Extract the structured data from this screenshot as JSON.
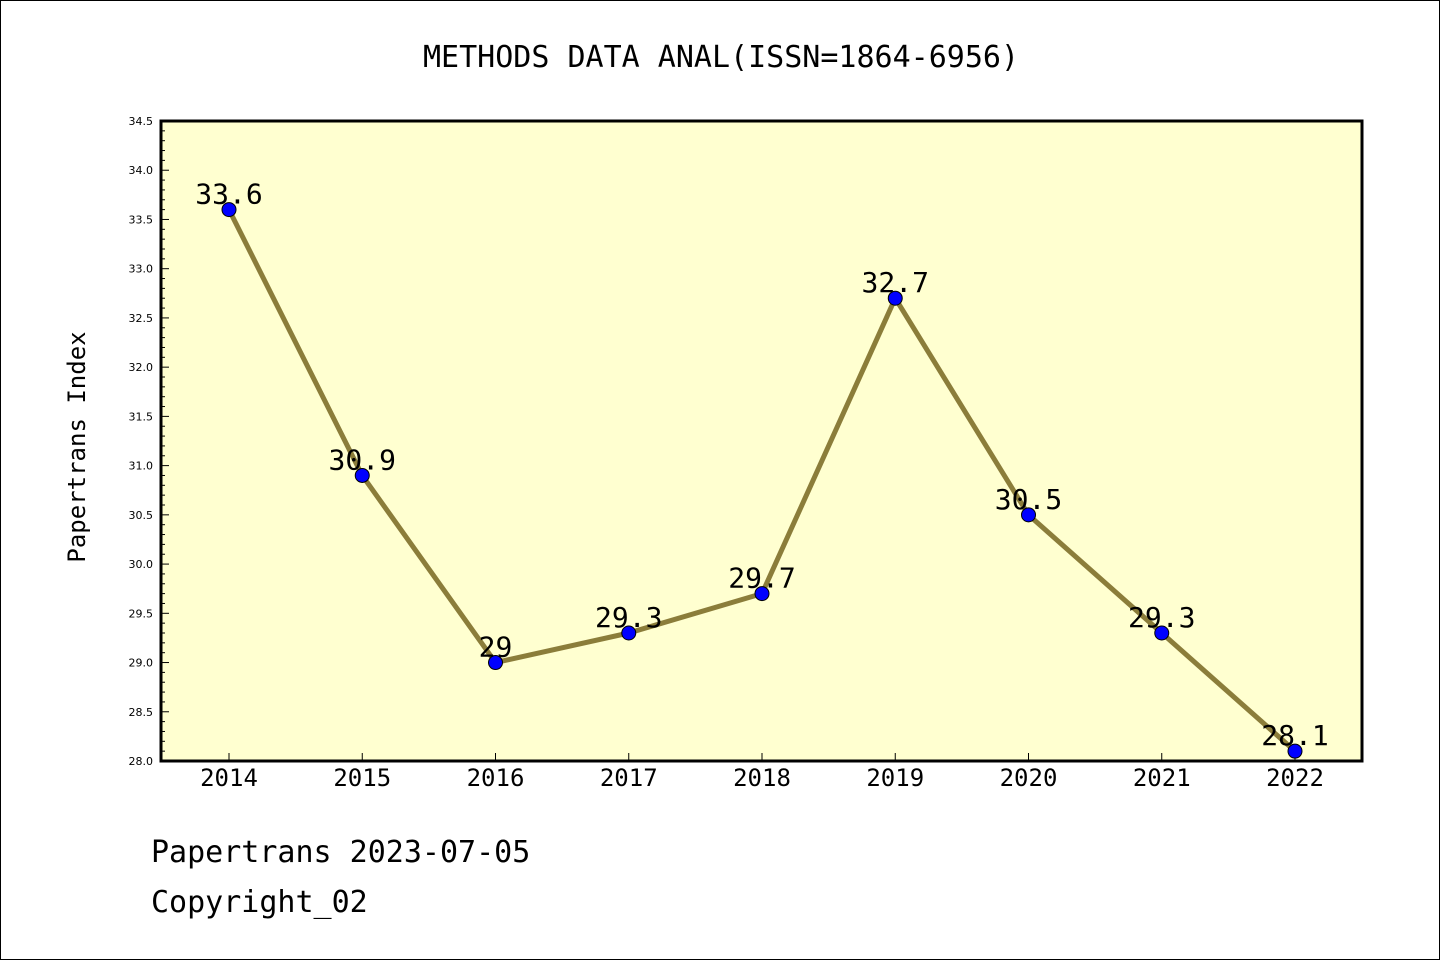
{
  "chart_data": {
    "type": "line",
    "title": "METHODS DATA ANAL(ISSN=1864-6956)",
    "xlabel": "",
    "ylabel": "Papertrans Index",
    "categories": [
      "2014",
      "2015",
      "2016",
      "2017",
      "2018",
      "2019",
      "2020",
      "2021",
      "2022"
    ],
    "series": [
      {
        "values": [
          33.6,
          30.9,
          29,
          29.3,
          29.7,
          32.7,
          30.5,
          29.3,
          28.1
        ],
        "labels": [
          "33.6",
          "30.9",
          "29",
          "29.3",
          "29.7",
          "32.7",
          "30.5",
          "29.3",
          "28.1"
        ]
      }
    ],
    "ylim": [
      28.0,
      34.5
    ],
    "yticks": [
      "28.0",
      "28.5",
      "29.0",
      "29.5",
      "30.0",
      "30.5",
      "31.0",
      "31.5",
      "32.0",
      "32.5",
      "33.0",
      "33.5",
      "34.0",
      "34.5"
    ],
    "grid": false,
    "colors": {
      "plot_background": "#ffffd0",
      "line": "#8b7d3a",
      "marker": "#0000ff"
    }
  },
  "footer": {
    "date_text": "Papertrans 2023-07-05",
    "copyright_text": "Copyright_02"
  }
}
